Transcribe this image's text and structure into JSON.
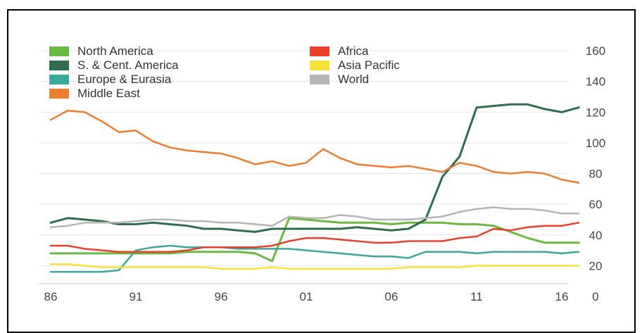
{
  "chart_data": {
    "type": "line",
    "x": [
      1986,
      1987,
      1988,
      1989,
      1990,
      1991,
      1992,
      1993,
      1994,
      1995,
      1996,
      1997,
      1998,
      1999,
      2000,
      2001,
      2002,
      2003,
      2004,
      2005,
      2006,
      2007,
      2008,
      2009,
      2010,
      2011,
      2012,
      2013,
      2014,
      2015,
      2016,
      2017
    ],
    "x_tick_labels": [
      "86",
      "91",
      "96",
      "01",
      "06",
      "11",
      "16"
    ],
    "x_tick_values": [
      1986,
      1991,
      1996,
      2001,
      2006,
      2011,
      2016
    ],
    "ylim": [
      0,
      160
    ],
    "y_ticks": [
      0,
      20,
      40,
      60,
      80,
      100,
      120,
      140,
      160
    ],
    "y_axis_position": "right",
    "legend_position": "top-left",
    "grid": "horizontal",
    "series": [
      {
        "name": "North America",
        "color": "#6ab943",
        "width": 3,
        "values": [
          28,
          28,
          28,
          28,
          28,
          28,
          28,
          28,
          29,
          29,
          29,
          29,
          28,
          23,
          51,
          50,
          49,
          48,
          48,
          48,
          47,
          48,
          48,
          48,
          47,
          47,
          46,
          42,
          38,
          35,
          35,
          35
        ]
      },
      {
        "name": "S. & Cent. America",
        "color": "#2e6e4e",
        "width": 3,
        "values": [
          48,
          51,
          50,
          49,
          47,
          47,
          48,
          47,
          46,
          44,
          44,
          43,
          42,
          44,
          44,
          44,
          44,
          44,
          45,
          44,
          43,
          44,
          50,
          78,
          91,
          123,
          124,
          125,
          125,
          122,
          120,
          123
        ]
      },
      {
        "name": "Europe & Eurasia",
        "color": "#3aa89b",
        "width": 2.5,
        "values": [
          16,
          16,
          16,
          16,
          17,
          30,
          32,
          33,
          32,
          32,
          32,
          31,
          31,
          31,
          31,
          30,
          29,
          28,
          27,
          26,
          26,
          25,
          29,
          29,
          29,
          28,
          29,
          29,
          29,
          29,
          28,
          29
        ]
      },
      {
        "name": "Middle East",
        "color": "#ef7d2d",
        "width": 2.5,
        "values": [
          115,
          121,
          120,
          114,
          107,
          108,
          101,
          97,
          95,
          94,
          93,
          90,
          86,
          88,
          85,
          87,
          96,
          90,
          86,
          85,
          84,
          85,
          83,
          81,
          87,
          85,
          81,
          80,
          81,
          80,
          76,
          74
        ]
      },
      {
        "name": "Africa",
        "color": "#e8402a",
        "width": 2.5,
        "values": [
          33,
          33,
          31,
          30,
          29,
          29,
          29,
          29,
          30,
          32,
          32,
          32,
          32,
          33,
          36,
          38,
          38,
          37,
          36,
          35,
          35,
          36,
          36,
          36,
          38,
          39,
          44,
          43,
          45,
          46,
          46,
          48
        ]
      },
      {
        "name": "Asia Pacific",
        "color": "#f7e23a",
        "width": 2.5,
        "values": [
          21,
          21,
          20,
          19,
          19,
          19,
          19,
          19,
          19,
          19,
          18,
          18,
          18,
          19,
          18,
          18,
          18,
          18,
          18,
          18,
          18,
          19,
          19,
          19,
          19,
          20,
          20,
          20,
          20,
          20,
          20,
          20
        ]
      },
      {
        "name": "World",
        "color": "#b5b5b5",
        "width": 2.5,
        "values": [
          45,
          46,
          48,
          48,
          48,
          49,
          50,
          50,
          49,
          49,
          48,
          48,
          47,
          46,
          52,
          51,
          51,
          53,
          52,
          50,
          50,
          50,
          51,
          52,
          55,
          57,
          58,
          57,
          57,
          56,
          54,
          54
        ]
      }
    ]
  }
}
